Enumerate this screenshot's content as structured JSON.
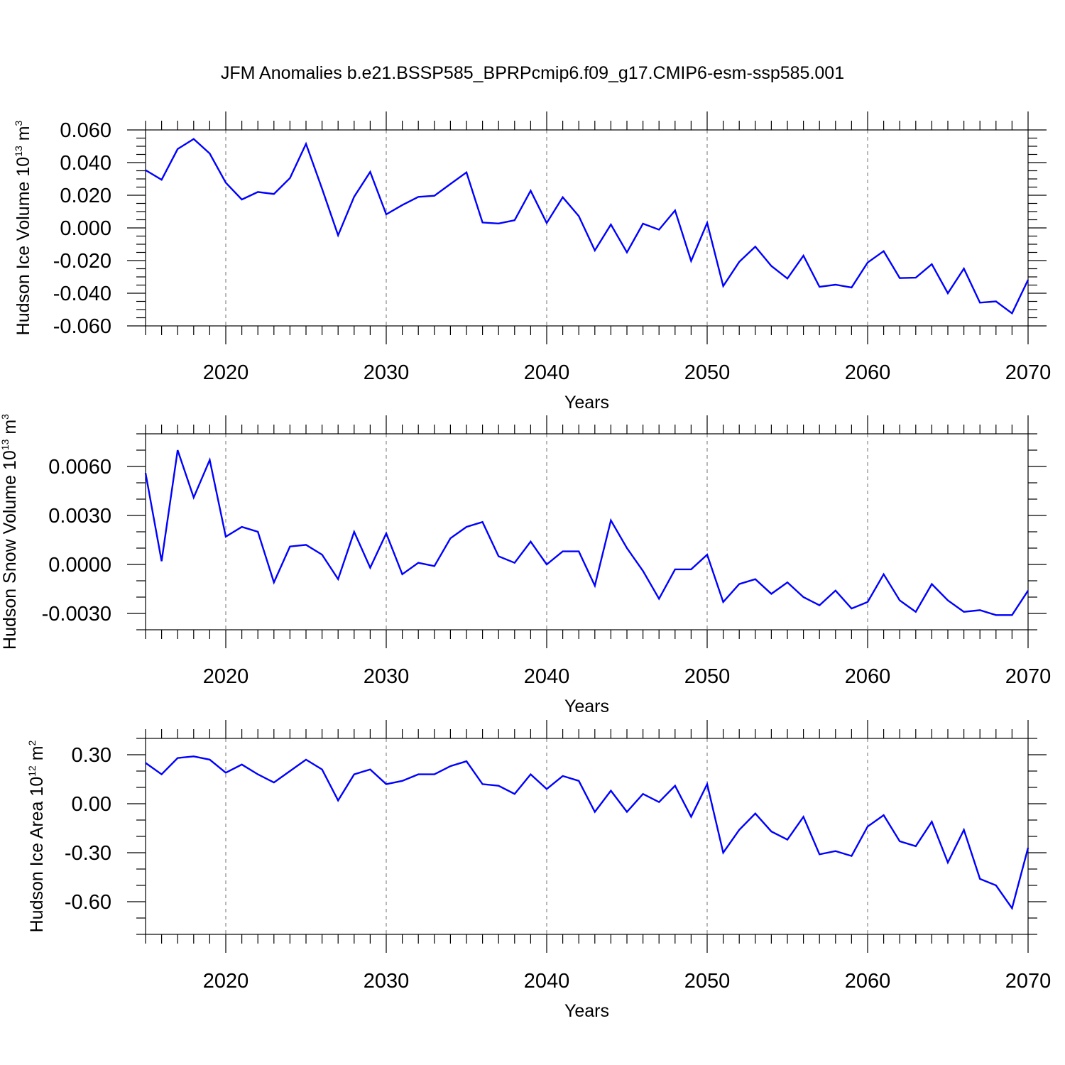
{
  "title": "JFM Anomalies b.e21.BSSP585_BPRPcmip6.f09_g17.CMIP6-esm-ssp585.001",
  "colors": {
    "line": "#0000ff",
    "axis": "#000000",
    "grid": "#888888"
  },
  "chart_data": [
    {
      "type": "line",
      "ylabel": {
        "text": "Hudson Ice Volume 10",
        "exp": "13",
        "unit": " m",
        "unit_exp": "3"
      },
      "xlabel": "Years",
      "xlim": [
        2015,
        2070
      ],
      "ylim": [
        -0.06,
        0.06
      ],
      "yticks": [
        0.06,
        0.04,
        0.02,
        0.0,
        -0.02,
        -0.04,
        -0.06
      ],
      "ytick_labels": [
        "0.060",
        "0.040",
        "0.020",
        "0.000",
        "-0.020",
        "-0.040",
        "-0.060"
      ],
      "minor_ytick_step": 0.005,
      "xticks": [
        2020,
        2030,
        2040,
        2050,
        2060,
        2070
      ],
      "xtick_labels": [
        "2020",
        "2030",
        "2040",
        "2050",
        "2060",
        "2070"
      ],
      "grid_x": [
        2020,
        2030,
        2040,
        2050,
        2060
      ],
      "x_start": 2015,
      "values": [
        0.0354,
        0.0295,
        0.0483,
        0.0545,
        0.0455,
        0.0277,
        0.0174,
        0.022,
        0.0208,
        0.0305,
        0.0515,
        0.024,
        -0.0045,
        0.0191,
        0.0343,
        0.0083,
        0.014,
        0.019,
        0.0197,
        0.0269,
        0.034,
        0.0033,
        0.0027,
        0.0047,
        0.0228,
        0.003,
        0.0188,
        0.0072,
        -0.0138,
        0.0021,
        -0.015,
        0.0026,
        -0.0011,
        0.0107,
        -0.0202,
        0.0031,
        -0.0356,
        -0.0208,
        -0.0115,
        -0.0233,
        -0.031,
        -0.017,
        -0.0361,
        -0.0348,
        -0.0365,
        -0.0212,
        -0.0142,
        -0.0307,
        -0.0305,
        -0.0222,
        -0.04,
        -0.0249,
        -0.0458,
        -0.045,
        -0.0523,
        -0.0318
      ]
    },
    {
      "type": "line",
      "ylabel": {
        "text": "Hudson Snow Volume 10",
        "exp": "13",
        "unit": " m",
        "unit_exp": "3"
      },
      "xlabel": "Years",
      "xlim": [
        2015,
        2070
      ],
      "ylim": [
        -0.004,
        0.008
      ],
      "yticks": [
        0.006,
        0.003,
        0.0,
        -0.003
      ],
      "ytick_labels": [
        "0.0060",
        "0.0030",
        "0.0000",
        "-0.0030"
      ],
      "minor_ytick_step": 0.001,
      "xticks": [
        2020,
        2030,
        2040,
        2050,
        2060,
        2070
      ],
      "xtick_labels": [
        "2020",
        "2030",
        "2040",
        "2050",
        "2060",
        "2070"
      ],
      "grid_x": [
        2020,
        2030,
        2040,
        2050,
        2060
      ],
      "x_start": 2015,
      "values": [
        0.0056,
        0.0002,
        0.007,
        0.0041,
        0.0064,
        0.0017,
        0.0023,
        0.002,
        -0.0011,
        0.0011,
        0.0012,
        0.0006,
        -0.0009,
        0.002,
        -0.0002,
        0.0019,
        -0.0006,
        0.0001,
        -0.0001,
        0.0016,
        0.0023,
        0.0026,
        0.0005,
        0.0001,
        0.0014,
        0.0,
        0.0008,
        0.0008,
        -0.0013,
        0.0027,
        0.001,
        -0.0004,
        -0.0021,
        -0.0003,
        -0.0003,
        0.0006,
        -0.0023,
        -0.0012,
        -0.0009,
        -0.0018,
        -0.0011,
        -0.002,
        -0.0025,
        -0.0016,
        -0.0027,
        -0.0023,
        -0.0006,
        -0.0022,
        -0.0029,
        -0.0012,
        -0.0022,
        -0.0029,
        -0.0028,
        -0.0031,
        -0.0031,
        -0.0016
      ]
    },
    {
      "type": "line",
      "ylabel": {
        "text": "Hudson Ice Area 10",
        "exp": "12",
        "unit": " m",
        "unit_exp": "2"
      },
      "xlabel": "Years",
      "xlim": [
        2015,
        2070
      ],
      "ylim": [
        -0.8,
        0.4
      ],
      "yticks": [
        0.3,
        0.0,
        -0.3,
        -0.6
      ],
      "ytick_labels": [
        "0.30",
        "0.00",
        "-0.30",
        "-0.60"
      ],
      "minor_ytick_step": 0.1,
      "xticks": [
        2020,
        2030,
        2040,
        2050,
        2060,
        2070
      ],
      "xtick_labels": [
        "2020",
        "2030",
        "2040",
        "2050",
        "2060",
        "2070"
      ],
      "grid_x": [
        2020,
        2030,
        2040,
        2050,
        2060
      ],
      "x_start": 2015,
      "values": [
        0.25,
        0.18,
        0.28,
        0.29,
        0.27,
        0.19,
        0.24,
        0.18,
        0.13,
        0.2,
        0.27,
        0.21,
        0.02,
        0.18,
        0.21,
        0.12,
        0.14,
        0.18,
        0.18,
        0.23,
        0.26,
        0.12,
        0.11,
        0.06,
        0.18,
        0.09,
        0.17,
        0.14,
        -0.05,
        0.08,
        -0.05,
        0.06,
        0.01,
        0.11,
        -0.08,
        0.12,
        -0.3,
        -0.16,
        -0.06,
        -0.17,
        -0.22,
        -0.08,
        -0.31,
        -0.29,
        -0.32,
        -0.14,
        -0.07,
        -0.23,
        -0.26,
        -0.11,
        -0.36,
        -0.16,
        -0.46,
        -0.5,
        -0.64,
        -0.27
      ]
    }
  ]
}
